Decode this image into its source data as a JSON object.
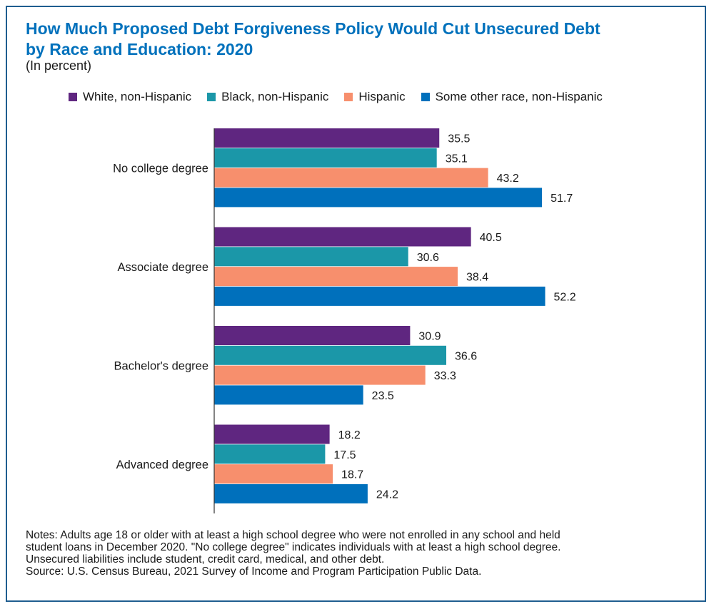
{
  "title_line1": "How Much Proposed Debt Forgiveness Policy Would Cut Unsecured Debt",
  "title_line2": "by Race and Education: 2020",
  "subtitle": "(In percent)",
  "notes": [
    "Notes: Adults age 18 or older with at least a high school degree who were not enrolled in any school and held",
    "student loans in December 2020. \"No college degree\" indicates individuals with at least a high school degree.",
    "Unsecured liabilities include student, credit card, medical, and other debt."
  ],
  "source": "Source: U.S. Census Bureau, 2021 Survey of Income and Program Participation Public Data.",
  "chart_data": {
    "type": "bar",
    "orientation": "horizontal",
    "categories": [
      "No college degree",
      "Associate degree",
      "Bachelor's degree",
      "Advanced degree"
    ],
    "series": [
      {
        "name": "White, non-Hispanic",
        "color": "#5f2680",
        "values": [
          35.5,
          40.5,
          30.9,
          18.2
        ]
      },
      {
        "name": "Black, non-Hispanic",
        "color": "#1b97a8",
        "values": [
          35.1,
          30.6,
          36.6,
          17.5
        ]
      },
      {
        "name": "Hispanic",
        "color": "#f78f6d",
        "values": [
          43.2,
          38.4,
          33.3,
          18.7
        ]
      },
      {
        "name": "Some other race, non-Hispanic",
        "color": "#0070bc",
        "values": [
          51.7,
          52.2,
          23.5,
          24.2
        ]
      }
    ],
    "xlim": [
      0,
      60
    ],
    "grid": false,
    "legend": "top",
    "data_labels": true
  }
}
